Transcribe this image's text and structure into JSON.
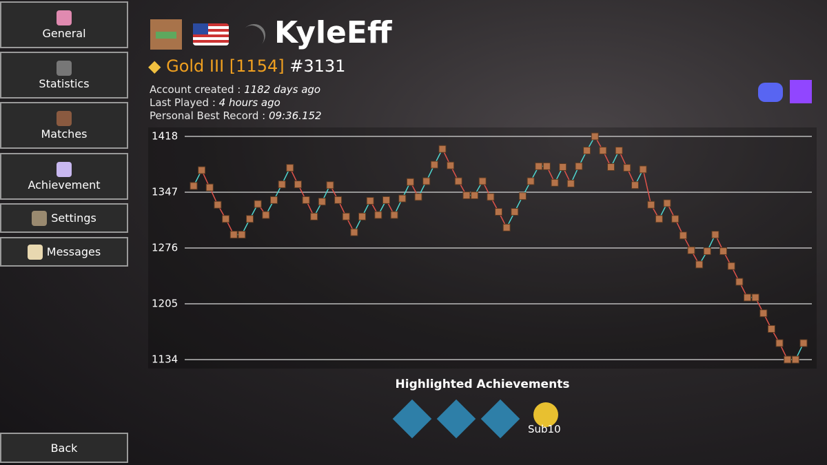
{
  "sidebar": {
    "buttons": [
      "General",
      "Statistics",
      "Matches",
      "Achievement",
      "Settings",
      "Messages"
    ],
    "back": "Back"
  },
  "profile": {
    "name": "KyleEff",
    "rank": "Gold III",
    "elo": "[1154]",
    "placement": "#3131",
    "info": [
      {
        "label": "Account created :",
        "value": "1182 days ago"
      },
      {
        "label": "Last Played :",
        "value": "4 hours ago"
      },
      {
        "label": "Personal Best Record :",
        "value": "09:36.152"
      }
    ]
  },
  "achievements": {
    "title": "Highlighted Achievements",
    "badge_label": "Sub10"
  },
  "chart_data": {
    "type": "line",
    "up_color": "#4fd6d0",
    "down_color": "#e0524a",
    "marker_color": "#b5734a",
    "values": [
      1355,
      1375,
      1353,
      1331,
      1313,
      1293,
      1293,
      1313,
      1332,
      1318,
      1337,
      1357,
      1378,
      1357,
      1337,
      1316,
      1335,
      1356,
      1337,
      1316,
      1296,
      1316,
      1336,
      1318,
      1337,
      1318,
      1339,
      1360,
      1341,
      1361,
      1382,
      1402,
      1381,
      1361,
      1343,
      1343,
      1361,
      1341,
      1322,
      1302,
      1322,
      1342,
      1361,
      1380,
      1380,
      1359,
      1379,
      1358,
      1380,
      1400,
      1418,
      1400,
      1379,
      1400,
      1378,
      1356,
      1376,
      1331,
      1313,
      1333,
      1313,
      1292,
      1273,
      1255,
      1272,
      1293,
      1272,
      1253,
      1233,
      1213,
      1213,
      1193,
      1173,
      1155,
      1134,
      1134,
      1155
    ],
    "ylim": [
      1134,
      1418
    ],
    "yticks": [
      1134,
      1205,
      1276,
      1347,
      1418
    ],
    "grid": true
  }
}
